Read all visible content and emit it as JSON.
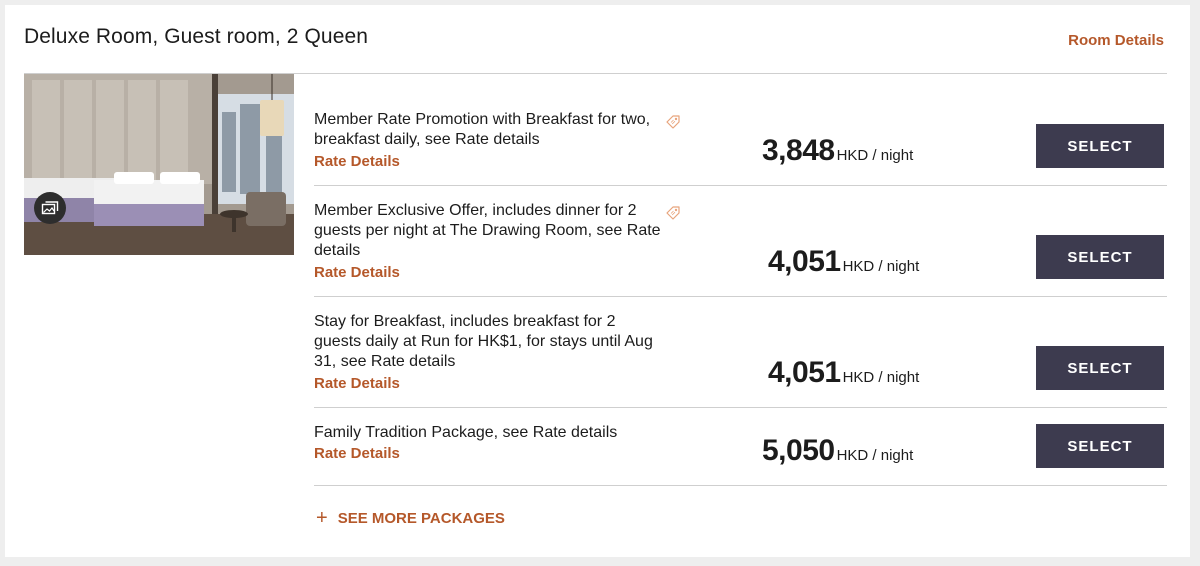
{
  "room": {
    "title": "Deluxe Room, Guest room, 2 Queen",
    "details_link": "Room Details"
  },
  "rates": [
    {
      "description": "Member Rate Promotion with Breakfast for two, breakfast daily, see Rate details",
      "rate_link": "Rate Details",
      "price": "3,848",
      "unit": "HKD / night",
      "select_label": "SELECT",
      "has_tag_icon": true
    },
    {
      "description": "Member Exclusive Offer, includes dinner for 2 guests per night at The Drawing Room, see Rate details",
      "rate_link": "Rate Details",
      "price": "4,051",
      "unit": "HKD / night",
      "select_label": "SELECT",
      "has_tag_icon": true
    },
    {
      "description": "Stay for Breakfast, includes breakfast for 2 guests daily at Run for HK$1, for stays until Aug 31, see Rate details",
      "rate_link": "Rate Details",
      "price": "4,051",
      "unit": "HKD / night",
      "select_label": "SELECT",
      "has_tag_icon": false
    },
    {
      "description": "Family Tradition Package, see Rate details",
      "rate_link": "Rate Details",
      "price": "5,050",
      "unit": "HKD / night",
      "select_label": "SELECT",
      "has_tag_icon": false
    }
  ],
  "see_more": {
    "icon": "plus-icon",
    "label": "SEE MORE PACKAGES"
  },
  "colors": {
    "accent": "#b5582a",
    "button": "#3d3b4f"
  }
}
